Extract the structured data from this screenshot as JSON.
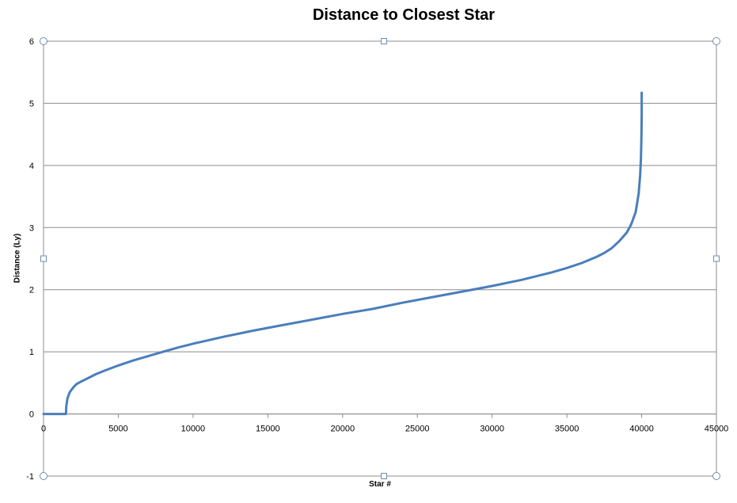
{
  "chart_data": {
    "type": "line",
    "title": "Distance to Closest Star",
    "xlabel": "Star #",
    "ylabel": "Distance  (Ly)",
    "xlim": [
      0,
      45000
    ],
    "ylim": [
      -1,
      6
    ],
    "xticks": [
      "0",
      "5000",
      "10000",
      "15000",
      "20000",
      "25000",
      "30000",
      "35000",
      "40000",
      "45000"
    ],
    "yticks": [
      "-1",
      "0",
      "1",
      "2",
      "3",
      "4",
      "5",
      "6"
    ],
    "grid": "horizontal",
    "legend": "none",
    "series": [
      {
        "color": "#4a7ebb",
        "x": [
          0,
          1400,
          1500,
          1520,
          1600,
          1750,
          2000,
          2200,
          2500,
          3000,
          3500,
          4000,
          5000,
          6000,
          7000,
          8000,
          9000,
          10000,
          12000,
          14000,
          16000,
          18000,
          20000,
          22000,
          24000,
          26000,
          28000,
          30000,
          32000,
          34000,
          35000,
          36000,
          37000,
          37500,
          38000,
          38500,
          39000,
          39300,
          39600,
          39800,
          39900,
          39950,
          39980,
          40000,
          40000
        ],
        "y": [
          0,
          0,
          0,
          0.12,
          0.25,
          0.35,
          0.43,
          0.48,
          0.52,
          0.58,
          0.64,
          0.69,
          0.78,
          0.86,
          0.93,
          1.0,
          1.07,
          1.13,
          1.24,
          1.34,
          1.43,
          1.52,
          1.61,
          1.69,
          1.79,
          1.88,
          1.97,
          2.06,
          2.16,
          2.28,
          2.35,
          2.43,
          2.53,
          2.59,
          2.67,
          2.78,
          2.92,
          3.05,
          3.25,
          3.55,
          3.85,
          4.1,
          4.4,
          4.8,
          5.17
        ]
      }
    ]
  }
}
